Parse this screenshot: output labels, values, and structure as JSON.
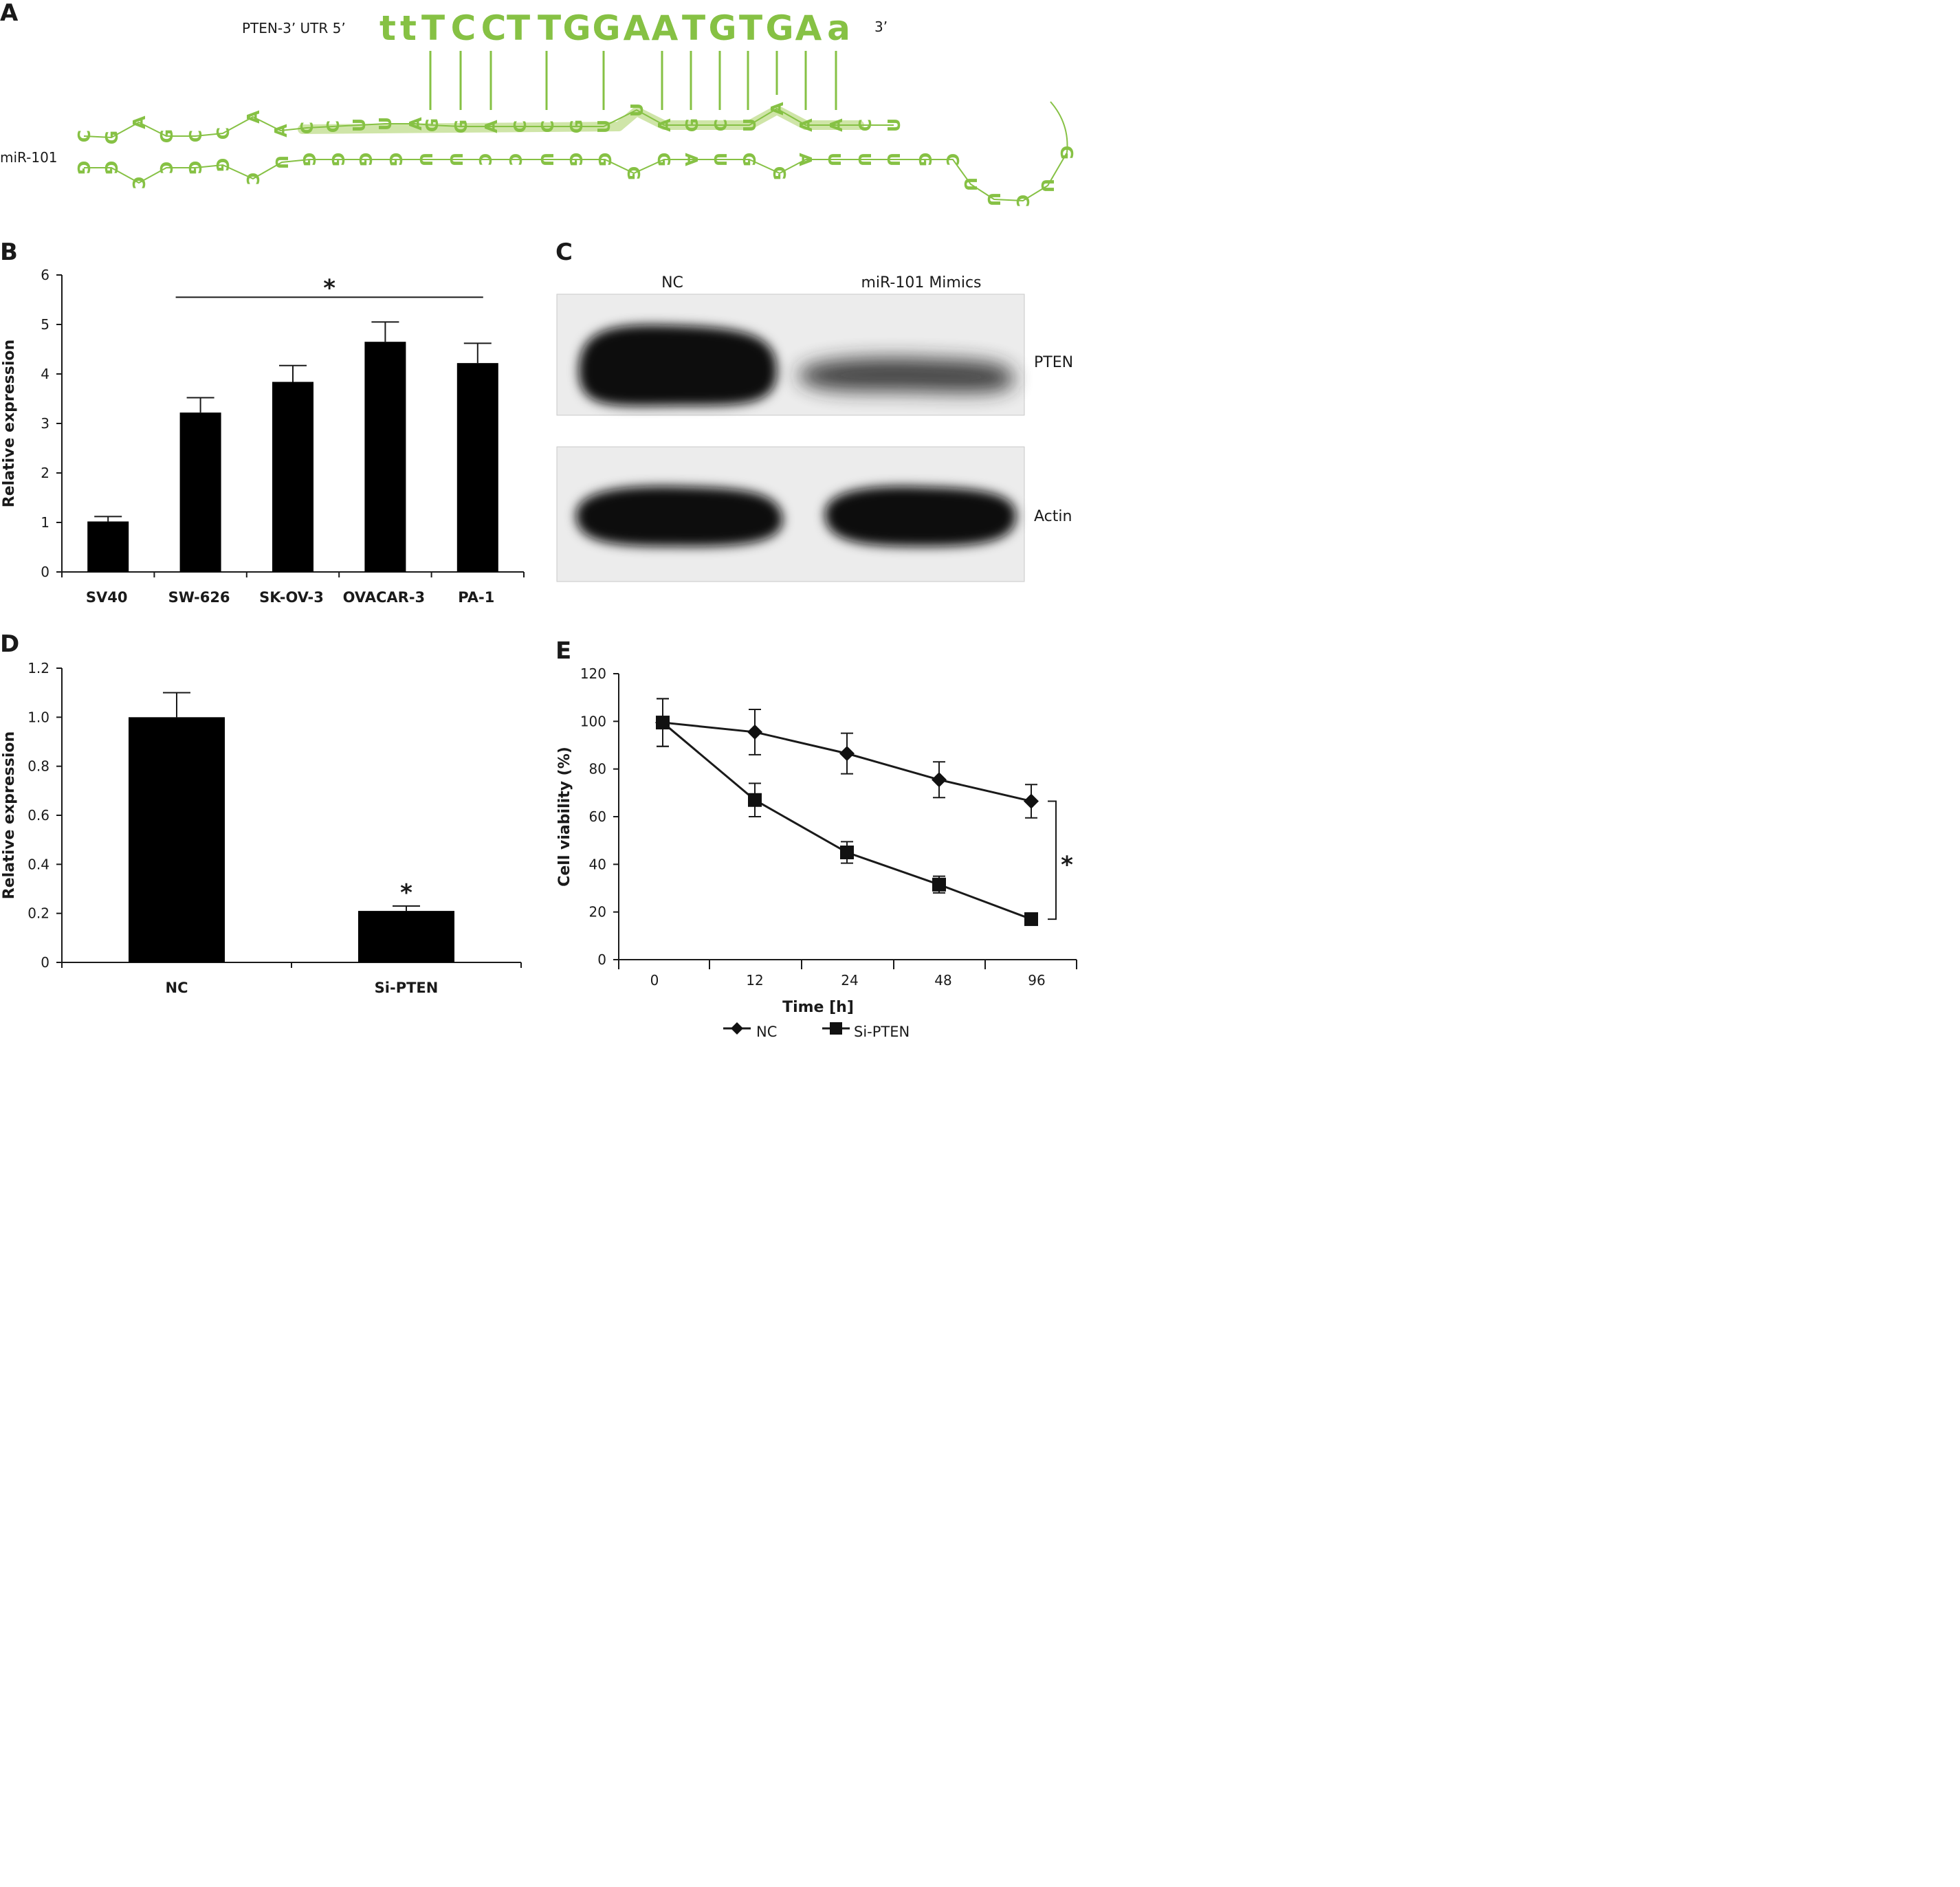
{
  "panels": {
    "a": {
      "letter": "A"
    },
    "b": {
      "letter": "B"
    },
    "c": {
      "letter": "C"
    },
    "d": {
      "letter": "D"
    },
    "e": {
      "letter": "E"
    }
  },
  "colors": {
    "rna": "#86c144",
    "rna_highlight": "#cfe5a8",
    "bar": "#000000"
  },
  "sequence": {
    "pten_label": "PTEN-3’ UTR 5’",
    "pten_3prime": "3’",
    "mir_label": "miR-101",
    "pten_nts": [
      "t",
      "t",
      "T",
      "C",
      "C",
      "T",
      "T",
      "G",
      "G",
      "A",
      "A",
      "T",
      "G",
      "T",
      "G",
      "A",
      "a"
    ],
    "mir_upper_nts": [
      "C",
      "G",
      "A",
      "G",
      "C",
      "C",
      "A",
      "A",
      "C",
      "C",
      "U",
      "U",
      "A",
      "G",
      "G",
      "A",
      "C",
      "C",
      "G",
      "U",
      "U",
      "A",
      "G",
      "C",
      "U",
      "A",
      "A",
      "A",
      "C",
      "U"
    ],
    "mir_lower_nts": [
      "G",
      "G",
      "C",
      "C",
      "G",
      "G",
      "C",
      "U",
      "G",
      "G",
      "G",
      "G",
      "U",
      "U",
      "C",
      "C",
      "U",
      "G",
      "G",
      "G",
      "G",
      "A",
      "U",
      "G",
      "G",
      "A",
      "U",
      "U",
      "U",
      "G",
      "C",
      "U",
      "U",
      "C",
      "U",
      "G"
    ]
  },
  "chart_data": [
    {
      "type": "bar",
      "panel": "B",
      "categories": [
        "SV40",
        "SW-626",
        "SK-OV-3",
        "OVACAR-3",
        "PA-1"
      ],
      "values": [
        1.02,
        3.22,
        3.84,
        4.65,
        4.22
      ],
      "errors": [
        0.1,
        0.3,
        0.33,
        0.4,
        0.4
      ],
      "xlabel": "",
      "ylabel": "Relative expression",
      "ylim": [
        0,
        6
      ],
      "yticks": [
        "0",
        "1",
        "2",
        "3",
        "4",
        "5",
        "6"
      ],
      "significance": {
        "label": "*",
        "from": "SW-626",
        "to": "PA-1"
      },
      "grid": false,
      "legend": "none"
    },
    {
      "type": "table",
      "panel": "C",
      "columns": [
        "NC",
        "miR-101 Mimics"
      ],
      "rows": [
        "PTEN",
        "Actin"
      ]
    },
    {
      "type": "bar",
      "panel": "D",
      "categories": [
        "NC",
        "Si-PTEN"
      ],
      "values": [
        1.0,
        0.21
      ],
      "errors": [
        0.1,
        0.02
      ],
      "xlabel": "",
      "ylabel": "Relative expression",
      "ylim": [
        0,
        1.2
      ],
      "yticks": [
        "0",
        "0.2",
        "0.4",
        "0.6",
        "0.8",
        "1.0",
        "1.2"
      ],
      "significance": {
        "label": "*",
        "over": "Si-PTEN"
      },
      "grid": false,
      "legend": "none"
    },
    {
      "type": "line",
      "panel": "E",
      "x": [
        "0",
        "12",
        "24",
        "48",
        "96"
      ],
      "series": [
        {
          "name": "NC",
          "marker": "diamond",
          "values": [
            99.5,
            95.5,
            86.5,
            75.5,
            66.5
          ],
          "errors": [
            10,
            9.5,
            8.5,
            7.5,
            7
          ]
        },
        {
          "name": "Si-PTEN",
          "marker": "square",
          "values": [
            99.5,
            67,
            45,
            31.5,
            17
          ],
          "errors": [
            10,
            7,
            4.5,
            3.5,
            1.5
          ]
        }
      ],
      "xlabel": "Time [h]",
      "ylabel": "Cell viability (%)",
      "ylim": [
        0,
        120
      ],
      "yticks": [
        "0",
        "20",
        "40",
        "60",
        "80",
        "100",
        "120"
      ],
      "significance": {
        "label": "*",
        "at": "96"
      },
      "grid": false,
      "legend": "bottom"
    }
  ]
}
